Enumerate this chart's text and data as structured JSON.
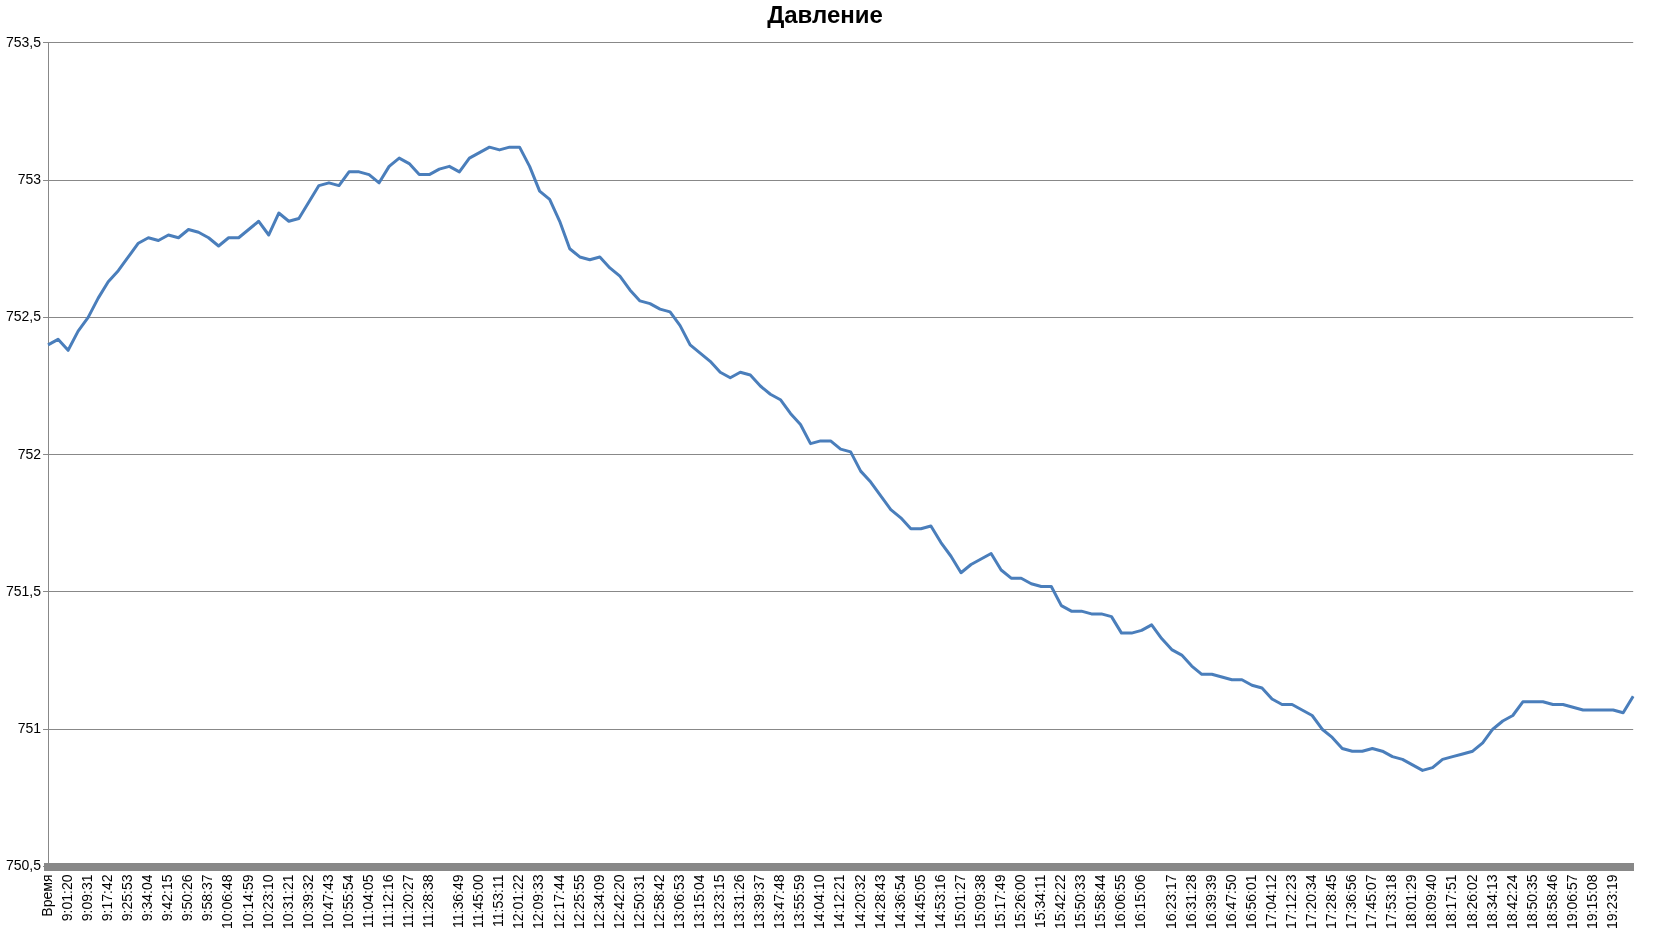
{
  "chart_data": {
    "type": "line",
    "title": "Давление",
    "categories": [
      "Время",
      null,
      "9:01:20",
      null,
      "9:09:31",
      null,
      "9:17:42",
      null,
      "9:25:53",
      null,
      "9:34:04",
      null,
      "9:42:15",
      null,
      "9:50:26",
      null,
      "9:58:37",
      null,
      "10:06:48",
      null,
      "10:14:59",
      null,
      "10:23:10",
      null,
      "10:31:21",
      null,
      "10:39:32",
      null,
      "10:47:43",
      null,
      "10:55:54",
      null,
      "11:04:05",
      null,
      "11:12:16",
      null,
      "11:20:27",
      null,
      "11:28:38",
      null,
      null,
      "11:36:49",
      null,
      "11:45:00",
      null,
      "11:53:11",
      null,
      "12:01:22",
      null,
      "12:09:33",
      null,
      "12:17:44",
      null,
      "12:25:55",
      null,
      "12:34:09",
      null,
      "12:42:20",
      null,
      "12:50:31",
      null,
      "12:58:42",
      null,
      "13:06:53",
      null,
      "13:15:04",
      null,
      "13:23:15",
      null,
      "13:31:26",
      null,
      "13:39:37",
      null,
      "13:47:48",
      null,
      "13:55:59",
      null,
      "14:04:10",
      null,
      "14:12:21",
      null,
      "14:20:32",
      null,
      "14:28:43",
      null,
      "14:36:54",
      null,
      "14:45:05",
      null,
      "14:53:16",
      null,
      "15:01:27",
      null,
      "15:09:38",
      null,
      "15:17:49",
      null,
      "15:26:00",
      null,
      "15:34:11",
      null,
      "15:42:22",
      null,
      "15:50:33",
      null,
      "15:58:44",
      null,
      "16:06:55",
      null,
      "16:15:06",
      null,
      null,
      "16:23:17",
      null,
      "16:31:28",
      null,
      "16:39:39",
      null,
      "16:47:50",
      null,
      "16:56:01",
      null,
      "17:04:12",
      null,
      "17:12:23",
      null,
      "17:20:34",
      null,
      "17:28:45",
      null,
      "17:36:56",
      null,
      "17:45:07",
      null,
      "17:53:18",
      null,
      "18:01:29",
      null,
      "18:09:40",
      null,
      "18:17:51",
      null,
      "18:26:02",
      null,
      "18:34:13",
      null,
      "18:42:24",
      null,
      "18:50:35",
      null,
      "18:58:46",
      null,
      "19:06:57",
      null,
      "19:15:08",
      null,
      "19:23:19",
      null,
      null
    ],
    "series": [
      {
        "color": "#4a7ebb",
        "values": [
          752.4,
          752.42,
          752.38,
          752.45,
          752.5,
          752.57,
          752.63,
          752.67,
          752.72,
          752.77,
          752.79,
          752.78,
          752.8,
          752.79,
          752.82,
          752.81,
          752.79,
          752.76,
          752.79,
          752.79,
          752.82,
          752.85,
          752.8,
          752.88,
          752.85,
          752.86,
          752.92,
          752.98,
          752.99,
          752.98,
          753.03,
          753.03,
          753.02,
          752.99,
          753.05,
          753.08,
          753.06,
          753.02,
          753.02,
          753.04,
          753.05,
          753.03,
          753.08,
          753.1,
          753.12,
          753.11,
          753.12,
          753.12,
          753.05,
          752.96,
          752.93,
          752.85,
          752.75,
          752.72,
          752.71,
          752.72,
          752.68,
          752.65,
          752.6,
          752.56,
          752.55,
          752.53,
          752.52,
          752.47,
          752.4,
          752.37,
          752.34,
          752.3,
          752.28,
          752.3,
          752.29,
          752.25,
          752.22,
          752.2,
          752.15,
          752.11,
          752.04,
          752.05,
          752.05,
          752.02,
          752.01,
          751.94,
          751.9,
          751.85,
          751.8,
          751.77,
          751.73,
          751.73,
          751.74,
          751.68,
          751.63,
          751.57,
          751.6,
          751.62,
          751.64,
          751.58,
          751.55,
          751.55,
          751.53,
          751.52,
          751.52,
          751.45,
          751.43,
          751.43,
          751.42,
          751.42,
          751.41,
          751.35,
          751.35,
          751.36,
          751.38,
          751.33,
          751.29,
          751.27,
          751.23,
          751.2,
          751.2,
          751.19,
          751.18,
          751.18,
          751.16,
          751.15,
          751.11,
          751.09,
          751.09,
          751.07,
          751.05,
          751.0,
          750.97,
          750.93,
          750.92,
          750.92,
          750.93,
          750.92,
          750.9,
          750.89,
          750.87,
          750.85,
          750.86,
          750.89,
          750.9,
          750.91,
          750.92,
          750.95,
          751.0,
          751.03,
          751.05,
          751.1,
          751.1,
          751.1,
          751.09,
          751.09,
          751.08,
          751.07,
          751.07,
          751.07,
          751.07,
          751.06,
          751.12
        ]
      }
    ],
    "ylim": [
      750.5,
      753.5
    ],
    "yticks": [
      {
        "value": 750.5,
        "label": "750,5"
      },
      751,
      {
        "value": 751.5,
        "label": "751,5"
      },
      752,
      {
        "value": 752.5,
        "label": "752,5"
      },
      753,
      {
        "value": 753.5,
        "label": "753,5"
      }
    ],
    "grid": "y",
    "legend": false,
    "marker": "none",
    "line_style": "solid"
  }
}
